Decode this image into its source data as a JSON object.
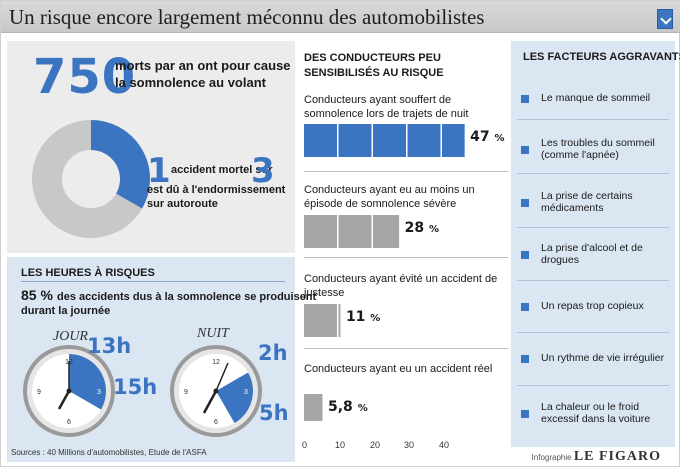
{
  "header": {
    "title": "Un risque encore largement méconnu des automobilistes"
  },
  "intro": {
    "number": "750",
    "text": "morts par an ont pour cause la somnolence au volant"
  },
  "donut": {
    "num1": "1",
    "line1": "accident mortel sur",
    "num2": "3",
    "line2": "est dû à l'endormissement sur autoroute",
    "fraction": 0.3333,
    "colors": {
      "accent": "#3b74c0",
      "base": "#c8c8c8"
    }
  },
  "hours": {
    "title": "LES HEURES À RISQUES",
    "pct": "85 %",
    "text1": "des accidents dus à la somnolence  se produisent",
    "text2": "durant la journée",
    "day_label": "JOUR",
    "night_label": "NUIT",
    "day_start": "13h",
    "day_end": "15h",
    "night_start": "2h",
    "night_end": "5h"
  },
  "sources": "Sources : 40 Millions d'automobilistes, Etude de l'ASFA",
  "chart": {
    "title": "DES CONDUCTEURS PEU SENSIBILISÉS AU RISQUE",
    "bars": [
      {
        "label": "Conducteurs ayant souffert de somnolence lors de trajets de nuit",
        "value_text": "47",
        "unit": "%"
      },
      {
        "label": "Conducteurs ayant eu au moins un épisode de somnolence sévère",
        "value_text": "28",
        "unit": "%"
      },
      {
        "label": "Conducteurs ayant évité un accident de justesse",
        "value_text": "11",
        "unit": "%"
      },
      {
        "label": "Conducteurs ayant eu un accident réel",
        "value_text": "5,8",
        "unit": "%"
      }
    ],
    "axis_ticks": [
      "0",
      "10",
      "20",
      "30",
      "40"
    ]
  },
  "chart_data": {
    "type": "bar",
    "title": "DES CONDUCTEURS PEU SENSIBILISÉS AU RISQUE",
    "categories": [
      "Conducteurs ayant souffert de somnolence lors de trajets de nuit",
      "Conducteurs ayant eu au moins un épisode de somnolence sévère",
      "Conducteurs ayant évité un accident de justesse",
      "Conducteurs ayant eu un accident réel"
    ],
    "values": [
      47,
      28,
      11,
      5.8
    ],
    "xlim": [
      0,
      47
    ],
    "colors": {
      "highlight": "#3b74c0",
      "default": "#a6a6a6"
    }
  },
  "factors": {
    "title": "LES FACTEURS  AGGRAVANTS",
    "items": [
      "Le manque de sommeil",
      "Les troubles du sommeil (comme l'apnée)",
      "La prise de certains médicaments",
      "La prise d'alcool et de drogues",
      "Un repas trop copieux",
      "Un rythme de vie irrégulier",
      "La chaleur ou le froid excessif dans la voiture"
    ]
  },
  "credit": {
    "prefix": "Infographie",
    "brand": "LE FIGARO"
  }
}
